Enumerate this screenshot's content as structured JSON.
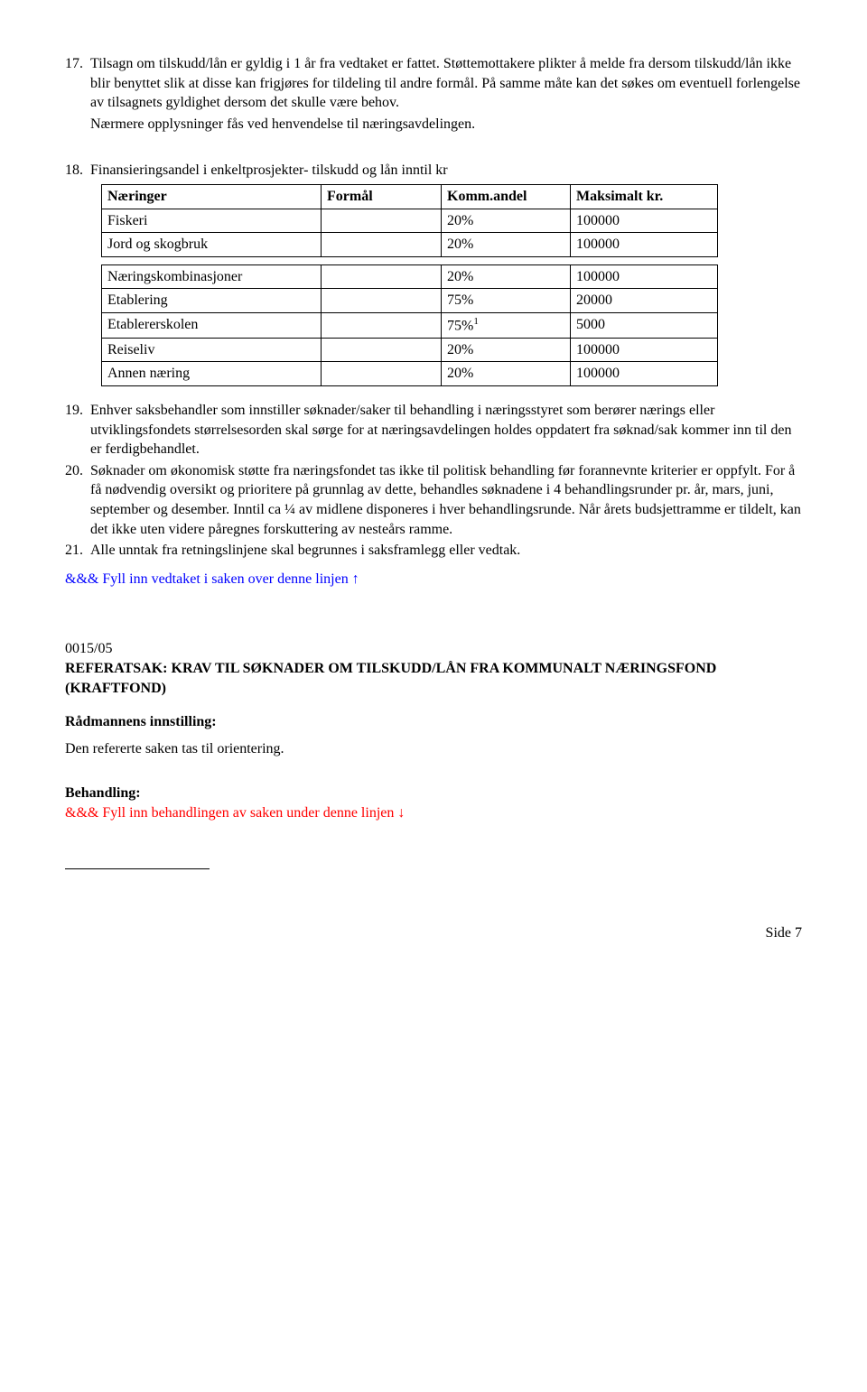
{
  "item17": {
    "num": "17.",
    "text": "Tilsagn om tilskudd/lån er gyldig i 1 år fra vedtaket er fattet. Støttemottakere plikter å melde fra dersom tilskudd/lån ikke blir benyttet slik at disse kan frigjøres for tildeling til andre formål. På samme måte kan det søkes om  eventuell forlengelse av tilsagnets gyldighet dersom det skulle være behov."
  },
  "item17b": "Nærmere opplysninger fås ved henvendelse til næringsavdelingen.",
  "item18": {
    "num": "18.",
    "text": "Finansieringsandel i enkeltprosjekter- tilskudd og lån inntil kr"
  },
  "table": {
    "header": [
      "Næringer",
      "Formål",
      "Komm.andel",
      "Maksimalt kr."
    ],
    "rows": [
      [
        "Fiskeri",
        "",
        "20%",
        "100000"
      ],
      [
        "Jord og skogbruk",
        "",
        "20%",
        "100000"
      ],
      [
        "Næringskombinasjoner",
        "",
        "20%",
        "100000"
      ],
      [
        "Etablering",
        "",
        "75%",
        "20000"
      ],
      [
        "Etablererskolen",
        "",
        "75%",
        "5000"
      ],
      [
        "Reiseliv",
        "",
        "20%",
        "100000"
      ],
      [
        "Annen næring",
        "",
        "20%",
        "100000"
      ]
    ],
    "sup_row_index": 4,
    "sup_text": "1",
    "split_after_row": 1
  },
  "item19": {
    "num": "19.",
    "text": "Enhver saksbehandler som innstiller søknader/saker til behandling i næringsstyret som berører nærings eller utviklingsfondets størrelsesorden skal sørge for at næringsavdelingen holdes oppdatert fra søknad/sak kommer inn til den er ferdigbehandlet."
  },
  "item20": {
    "num": "20.",
    "text": "Søknader om økonomisk støtte fra næringsfondet tas ikke til politisk behandling før forannevnte kriterier er oppfylt. For å få nødvendig oversikt og prioritere på grunnlag av dette, behandles søknadene i 4 behandlingsrunder pr. år, mars, juni, september og desember. Inntil ca ¼ av midlene disponeres i hver behandlingsrunde. Når årets budsjettramme er tildelt, kan det ikke uten videre påregnes forskuttering av nesteårs ramme."
  },
  "item21": {
    "num": "21.",
    "text": "Alle unntak fra retningslinjene skal begrunnes i saksframlegg eller vedtak."
  },
  "fill_vedtak": "&&& Fyll inn vedtaket i saken over denne linjen ↑",
  "case_no": "0015/05",
  "case_title": "REFERATSAK: KRAV TIL SØKNADER OM TILSKUDD/LÅN FRA KOMMUNALT NÆRINGSFOND (KRAFTFOND)",
  "radmann_label": "Rådmannens innstilling:",
  "radmann_text": "Den refererte saken tas til orientering.",
  "behandling_label": "Behandling:",
  "fill_behandling": "&&& Fyll inn behandlingen av saken under denne linjen ↓",
  "footer": "Side 7"
}
